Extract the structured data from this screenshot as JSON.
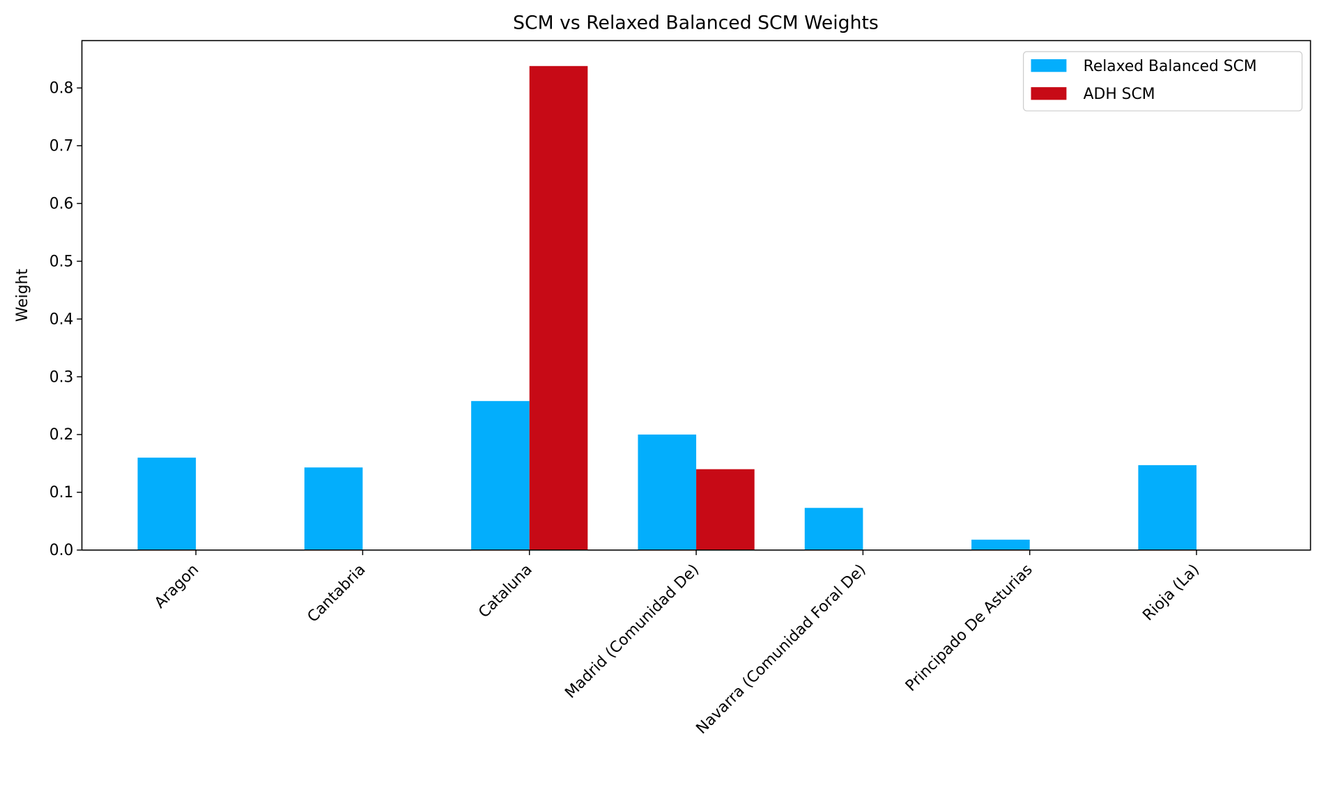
{
  "chart_data": {
    "type": "bar",
    "title": "SCM vs Relaxed Balanced SCM Weights",
    "xlabel": "",
    "ylabel": "Weight",
    "ylim": [
      0,
      0.882
    ],
    "yticks": [
      "0.0",
      "0.1",
      "0.2",
      "0.3",
      "0.4",
      "0.5",
      "0.6",
      "0.7",
      "0.8"
    ],
    "categories": [
      "Aragon",
      "Cantabria",
      "Cataluna",
      "Madrid (Comunidad De)",
      "Navarra (Comunidad Foral De)",
      "Principado De Asturias",
      "Rioja (La)"
    ],
    "series": [
      {
        "name": "Relaxed Balanced SCM",
        "color": "#03AEFC",
        "values": [
          0.16,
          0.143,
          0.258,
          0.2,
          0.073,
          0.018,
          0.147
        ]
      },
      {
        "name": "ADH SCM",
        "color": "#C70A16",
        "values": [
          0.0,
          0.0,
          0.838,
          0.14,
          0.0,
          0.0,
          0.0
        ]
      }
    ],
    "legend": "top-right",
    "grid": false
  }
}
